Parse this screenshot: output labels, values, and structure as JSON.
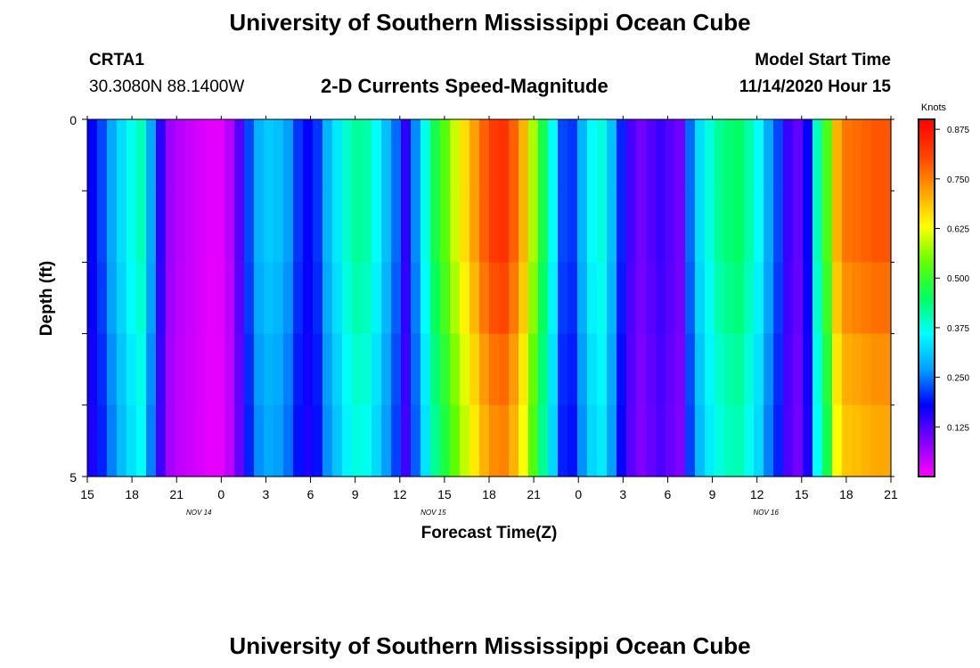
{
  "header": {
    "title": "University of Southern Mississippi Ocean Cube",
    "station": "CRTA1",
    "coords": "30.3080N 88.1400W",
    "plot_title": "2-D Currents Speed-Magnitude",
    "model_label": "Model Start Time",
    "model_time": "11/14/2020 Hour 15"
  },
  "footer": {
    "title": "University of Southern Mississippi Ocean Cube"
  },
  "chart_data": {
    "type": "heatmap",
    "title": "2-D Currents Speed-Magnitude",
    "xlabel": "Forecast Time(Z)",
    "ylabel": "Depth (ft)",
    "x_ticks": [
      "15",
      "18",
      "21",
      "0",
      "3",
      "6",
      "9",
      "12",
      "15",
      "18",
      "21",
      "0",
      "3",
      "6",
      "9",
      "12",
      "15",
      "18",
      "21"
    ],
    "date_labels": [
      "NOV 14",
      "NOV 15",
      "NOV 16"
    ],
    "y_ticks": [
      "0",
      "5"
    ],
    "ylim": [
      0,
      5
    ],
    "colorbar": {
      "unit": "Knots",
      "ticks": [
        "0.875",
        "0.750",
        "0.625",
        "0.500",
        "0.375",
        "0.250",
        "0.125"
      ],
      "tick_values": [
        0.875,
        0.75,
        0.625,
        0.5,
        0.375,
        0.25,
        0.125
      ],
      "range": [
        0,
        0.9
      ],
      "colors": [
        "#ff00ff",
        "#8000ff",
        "#0000ff",
        "#00a0ff",
        "#00ffff",
        "#00ff60",
        "#60ff00",
        "#ffff00",
        "#ffa000",
        "#ff4000",
        "#ff0000"
      ]
    },
    "speed_by_hour": [
      0.18,
      0.22,
      0.28,
      0.33,
      0.37,
      0.4,
      0.28,
      0.15,
      0.07,
      0.05,
      0.04,
      0.03,
      0.02,
      0.02,
      0.05,
      0.12,
      0.22,
      0.29,
      0.31,
      0.3,
      0.27,
      0.21,
      0.18,
      0.21,
      0.29,
      0.34,
      0.39,
      0.42,
      0.41,
      0.36,
      0.3,
      0.24,
      0.15,
      0.26,
      0.37,
      0.47,
      0.53,
      0.6,
      0.66,
      0.72,
      0.78,
      0.82,
      0.83,
      0.78,
      0.7,
      0.58,
      0.47,
      0.36,
      0.22,
      0.21,
      0.29,
      0.36,
      0.38,
      0.3,
      0.2,
      0.13,
      0.1,
      0.12,
      0.14,
      0.12,
      0.1,
      0.24,
      0.33,
      0.38,
      0.42,
      0.44,
      0.45,
      0.41,
      0.36,
      0.28,
      0.22,
      0.14,
      0.11,
      0.18,
      0.4,
      0.52,
      0.7,
      0.76,
      0.77,
      0.78,
      0.79,
      0.79
    ],
    "depth_rows": 5,
    "depth_factors": [
      1.0,
      1.0,
      0.97,
      0.93,
      0.9
    ]
  }
}
